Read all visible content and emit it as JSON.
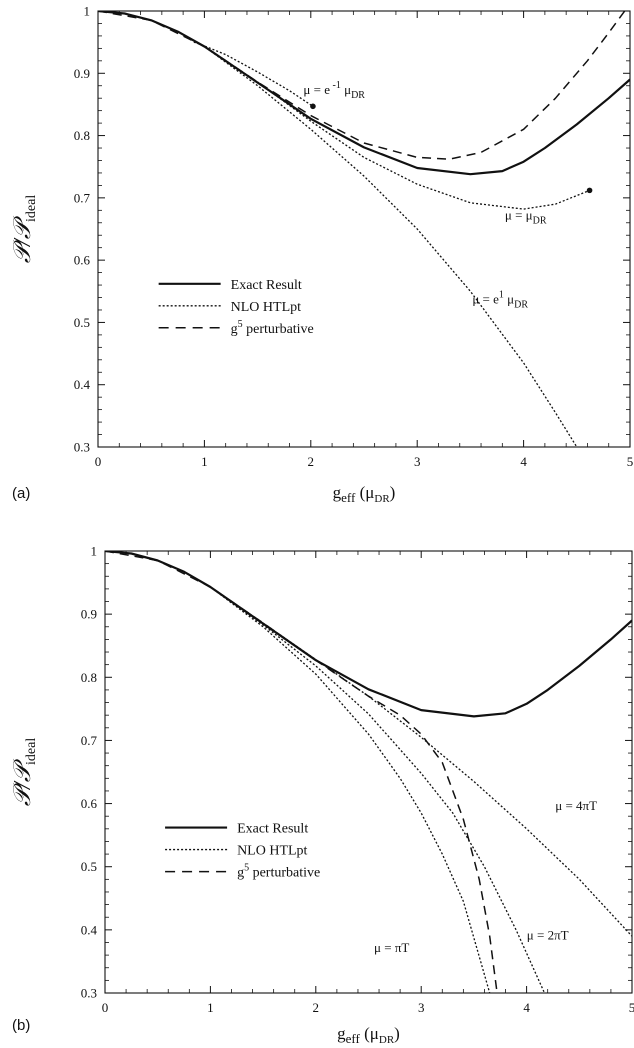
{
  "chart_data": [
    {
      "type": "line",
      "panel_label": "(a)",
      "ylabel": "𝒫/𝒫",
      "ylabel_sub": "ideal",
      "xlabel": "g",
      "xlabel_sub": "eff",
      "xlabel_arg": "(μ",
      "xlabel_arg_sub": "DR",
      "xlabel_close": ")",
      "xlim": [
        0,
        5
      ],
      "ylim": [
        0.3,
        1.0
      ],
      "xticks": [
        "0",
        "1",
        "2",
        "3",
        "4",
        "5"
      ],
      "yticks": [
        "0.3",
        "0.4",
        "0.5",
        "0.6",
        "0.7",
        "0.8",
        "0.9",
        "1"
      ],
      "legend": [
        {
          "name": "Exact Result",
          "style": "solid"
        },
        {
          "name": "NLO HTLpt",
          "style": "dotted"
        },
        {
          "name": "g",
          "sup": "5",
          "rest": " perturbative",
          "style": "dashed"
        }
      ],
      "series": [
        {
          "role": "exact",
          "style": "solid",
          "x": [
            0,
            0.25,
            0.5,
            0.75,
            1.0,
            1.5,
            2.0,
            2.5,
            3.0,
            3.5,
            3.8,
            4.0,
            4.2,
            4.5,
            4.8,
            5.0
          ],
          "y": [
            1.0,
            0.996,
            0.985,
            0.967,
            0.943,
            0.885,
            0.827,
            0.781,
            0.748,
            0.738,
            0.743,
            0.758,
            0.78,
            0.818,
            0.86,
            0.89
          ]
        },
        {
          "role": "perturbative",
          "style": "dashed",
          "x": [
            0,
            0.5,
            1.0,
            1.5,
            2.0,
            2.5,
            3.0,
            3.3,
            3.6,
            4.0,
            4.3,
            4.6,
            4.8,
            4.95
          ],
          "y": [
            1.0,
            0.985,
            0.943,
            0.886,
            0.832,
            0.788,
            0.765,
            0.762,
            0.773,
            0.81,
            0.86,
            0.92,
            0.965,
            1.0
          ]
        },
        {
          "role": "htlpt",
          "style": "dotted",
          "x": [
            0.9,
            1.0,
            1.2,
            1.5,
            1.8,
            2.02
          ],
          "y": [
            0.95,
            0.944,
            0.93,
            0.902,
            0.872,
            0.847
          ],
          "marker_end": true
        },
        {
          "role": "htlpt",
          "style": "dotted",
          "x": [
            1.0,
            1.5,
            2.0,
            2.5,
            3.0,
            3.5,
            4.0,
            4.3,
            4.62
          ],
          "y": [
            0.943,
            0.886,
            0.823,
            0.765,
            0.722,
            0.692,
            0.682,
            0.69,
            0.712
          ],
          "marker_end": true
        },
        {
          "role": "htlpt",
          "style": "dotted",
          "x": [
            1.0,
            1.5,
            2.0,
            2.5,
            3.0,
            3.5,
            4.0,
            4.3,
            4.5
          ],
          "y": [
            0.943,
            0.88,
            0.81,
            0.735,
            0.65,
            0.55,
            0.435,
            0.355,
            0.3
          ]
        }
      ],
      "annotations": [
        {
          "x": 2.22,
          "y": 0.867,
          "text": "μ = e",
          "sup": " -1",
          "rest": " μ",
          "sub": "DR"
        },
        {
          "x": 4.02,
          "y": 0.665,
          "text": "μ = μ",
          "sub": "DR"
        },
        {
          "x": 3.78,
          "y": 0.53,
          "text": "μ = e",
          "sup": "1",
          "rest": " μ",
          "sub": "DR"
        }
      ]
    },
    {
      "type": "line",
      "panel_label": "(b)",
      "ylabel": "𝒫/𝒫",
      "ylabel_sub": "ideal",
      "xlabel": "g",
      "xlabel_sub": "eff",
      "xlabel_arg": "(μ",
      "xlabel_arg_sub": "DR",
      "xlabel_close": ")",
      "xlim": [
        0,
        5
      ],
      "ylim": [
        0.3,
        1.0
      ],
      "xticks": [
        "0",
        "1",
        "2",
        "3",
        "4",
        "5"
      ],
      "yticks": [
        "0.3",
        "0.4",
        "0.5",
        "0.6",
        "0.7",
        "0.8",
        "0.9",
        "1"
      ],
      "legend": [
        {
          "name": "Exact Result",
          "style": "solid"
        },
        {
          "name": "NLO HTLpt",
          "style": "dotted"
        },
        {
          "name": "g",
          "sup": "5",
          "rest": " perturbative",
          "style": "dashed"
        }
      ],
      "series": [
        {
          "role": "exact",
          "style": "solid",
          "x": [
            0,
            0.25,
            0.5,
            0.75,
            1.0,
            1.5,
            2.0,
            2.5,
            3.0,
            3.5,
            3.8,
            4.0,
            4.2,
            4.5,
            4.8,
            5.0
          ],
          "y": [
            1.0,
            0.996,
            0.985,
            0.967,
            0.943,
            0.885,
            0.827,
            0.781,
            0.748,
            0.738,
            0.743,
            0.758,
            0.78,
            0.818,
            0.86,
            0.89
          ]
        },
        {
          "role": "perturbative",
          "style": "dashed",
          "x": [
            0,
            0.5,
            1.0,
            1.5,
            2.0,
            2.5,
            2.8,
            3.0,
            3.2,
            3.4,
            3.55,
            3.65,
            3.72
          ],
          "y": [
            1.0,
            0.985,
            0.943,
            0.886,
            0.827,
            0.77,
            0.74,
            0.71,
            0.665,
            0.575,
            0.48,
            0.39,
            0.3
          ]
        },
        {
          "role": "htlpt",
          "style": "dotted",
          "x": [
            1.0,
            1.5,
            2.0,
            2.5,
            3.0,
            3.5,
            4.0,
            4.5,
            5.0
          ],
          "y": [
            0.943,
            0.886,
            0.828,
            0.77,
            0.705,
            0.635,
            0.56,
            0.48,
            0.39
          ]
        },
        {
          "role": "htlpt",
          "style": "dotted",
          "x": [
            1.0,
            1.5,
            2.0,
            2.5,
            3.0,
            3.3,
            3.6,
            3.9,
            4.17
          ],
          "y": [
            0.943,
            0.883,
            0.818,
            0.742,
            0.648,
            0.585,
            0.5,
            0.4,
            0.3
          ]
        },
        {
          "role": "htlpt",
          "style": "dotted",
          "x": [
            1.0,
            1.5,
            2.0,
            2.5,
            2.8,
            3.0,
            3.2,
            3.4,
            3.65
          ],
          "y": [
            0.943,
            0.88,
            0.805,
            0.71,
            0.64,
            0.585,
            0.52,
            0.445,
            0.3
          ]
        }
      ],
      "annotations": [
        {
          "x": 4.47,
          "y": 0.59,
          "text": "μ = 4πT"
        },
        {
          "x": 4.2,
          "y": 0.385,
          "text": "μ = 2πT"
        },
        {
          "x": 2.72,
          "y": 0.365,
          "text": "μ = πT"
        }
      ]
    }
  ]
}
